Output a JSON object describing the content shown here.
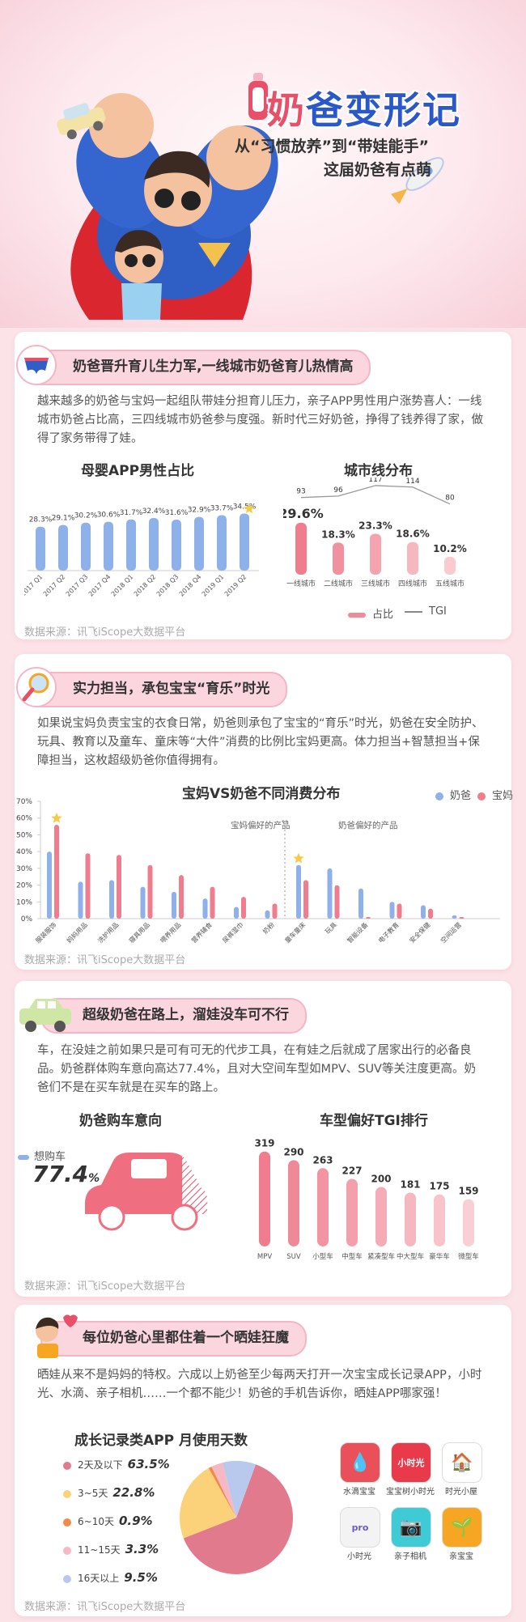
{
  "header": {
    "title_first": "奶",
    "title_rest": "爸变形记",
    "subtitle1": "从“习惯放养”到“带娃能手”",
    "subtitle2": "这届奶爸有点萌"
  },
  "source_text": "数据来源：讯飞iScope大数据平台",
  "section1": {
    "banner": "奶爸晋升育儿生力军,一线城市奶爸育儿热情高",
    "paragraph": "越来越多的奶爸与宝妈一起组队带娃分担育儿压力，亲子APP男性用户涨势喜人：一线城市奶爸占比高，三四线城市奶爸参与度强。新时代三好奶爸，挣得了钱养得了家，做得了家务带得了娃。",
    "legend_share": "占比",
    "legend_tgi": "TGI"
  },
  "section2": {
    "banner": "实力担当，承包宝宝“育乐”时光",
    "paragraph": "如果说宝妈负责宝宝的衣食日常，奶爸则承包了宝宝的“育乐”时光，奶爸在安全防护、玩具、教育以及童车、童床等“大件”消费的比例比宝妈更高。体力担当+智慧担当+保障担当，这枚超级奶爸你值得拥有。",
    "pref_mom": "宝妈偏好的产品",
    "pref_dad": "奶爸偏好的产品"
  },
  "section3": {
    "banner": "超级奶爸在路上，溜娃没车可不行",
    "paragraph": "车，在没娃之前如果只是可有可无的代步工具，在有娃之后就成了居家出行的必备良品。奶爸群体购车意向高达77.4%，且对大空间车型如MPV、SUV等关注度更高。奶爸们不是在买车就是在买车的路上。",
    "intent_title": "奶爸购车意向",
    "intent_label": "想购车",
    "intent_value": "77.4",
    "intent_unit": "%"
  },
  "section4": {
    "banner": "每位奶爸心里都住着一个晒娃狂魔",
    "paragraph": "晒娃从来不是妈妈的特权。六成以上奶爸至少每两天打开一次宝宝成长记录APP，小时光、水滴、亲子相机……一个都不能少！奶爸的手机告诉你，晒娃APP哪家强！",
    "apps": [
      {
        "name": "水滴宝宝",
        "color": "#e9505a",
        "glyph": "💧"
      },
      {
        "name": "宝宝树小时光",
        "color": "#e83a4a",
        "glyph": "小时光"
      },
      {
        "name": "时光小屋",
        "color": "#ffffff",
        "glyph": "🏠"
      },
      {
        "name": "小时光",
        "color": "#f3f3f3",
        "glyph": "pro"
      },
      {
        "name": "亲子相机",
        "color": "#3ecbd6",
        "glyph": "📷"
      },
      {
        "name": "亲宝宝",
        "color": "#f6a623",
        "glyph": "🌱"
      }
    ]
  },
  "colors": {
    "blue_bar": "#8fb1ea",
    "pink_bar": "#ef7d8d",
    "accent_red": "#e8506a",
    "title_blue": "#2a57c9",
    "banner_bg": "#fbd6df"
  },
  "chart_data": [
    {
      "type": "bar",
      "title": "母婴APP男性占比",
      "categories": [
        "2017 Q1",
        "2017 Q2",
        "2017 Q3",
        "2017 Q4",
        "2018 Q1",
        "2018 Q2",
        "2018 Q3",
        "2018 Q4",
        "2019 Q1",
        "2019 Q2"
      ],
      "values": [
        28.3,
        29.1,
        30.2,
        30.6,
        31.7,
        32.4,
        31.6,
        32.9,
        33.7,
        34.5
      ],
      "value_labels": [
        "28.3%",
        "29.1%",
        "30.2%",
        "30.6%",
        "31.7%",
        "32.4%",
        "31.6%",
        "32.9%",
        "33.7%",
        "34.5%"
      ],
      "ylim": [
        0,
        40
      ]
    },
    {
      "type": "bar",
      "title": "城市线分布",
      "categories": [
        "一线城市",
        "二线城市",
        "三线城市",
        "四线城市",
        "五线城市"
      ],
      "series": [
        {
          "name": "占比",
          "values": [
            29.6,
            18.3,
            23.3,
            18.6,
            10.2
          ],
          "labels": [
            "29.6%",
            "18.3%",
            "23.3%",
            "18.6%",
            "10.2%"
          ]
        },
        {
          "name": "TGI",
          "type": "line",
          "values": [
            93,
            96,
            117,
            114,
            80
          ]
        }
      ],
      "ylim": [
        0,
        35
      ]
    },
    {
      "type": "bar",
      "title": "宝妈VS奶爸不同消费分布",
      "categories": [
        "服装服饰",
        "妈妈用品",
        "洗护用品",
        "寝具用品",
        "喂养用品",
        "营养辅食",
        "尿裤湿巾",
        "奶粉",
        "童车童床",
        "玩具",
        "智能设备",
        "电子教育",
        "安全保健",
        "空间运营"
      ],
      "series": [
        {
          "name": "奶爸",
          "values": [
            40,
            22,
            23,
            19,
            16,
            12,
            7,
            5,
            32,
            30,
            18,
            10,
            8,
            2
          ]
        },
        {
          "name": "宝妈",
          "values": [
            56,
            39,
            38,
            32,
            26,
            19,
            13,
            9,
            23,
            20,
            1,
            9,
            6,
            1
          ]
        }
      ],
      "yticks": [
        "0%",
        "10%",
        "20%",
        "30%",
        "40%",
        "50%",
        "60%",
        "70%"
      ],
      "ylim": [
        0,
        70
      ],
      "legend": "top-right"
    },
    {
      "type": "bar",
      "title": "车型偏好TGI排行",
      "categories": [
        "MPV",
        "SUV",
        "小型车",
        "中型车",
        "紧凑型车",
        "中大型车",
        "豪华车",
        "微型车"
      ],
      "values": [
        319,
        290,
        263,
        227,
        200,
        181,
        175,
        159
      ]
    },
    {
      "type": "pie",
      "title": "成长记录类APP 月使用天数",
      "labels": [
        "2天及以下",
        "3~5天",
        "6~10天",
        "11~15天",
        "16天以上"
      ],
      "values": [
        63.5,
        22.8,
        0.9,
        3.3,
        9.5
      ],
      "value_labels": [
        "63.5%",
        "22.8%",
        "0.9%",
        "3.3%",
        "9.5%"
      ],
      "colors": [
        "#e07a8c",
        "#fbd27a",
        "#f08a4b",
        "#f6b9c4",
        "#b9c9ee"
      ],
      "legend": "left"
    }
  ]
}
